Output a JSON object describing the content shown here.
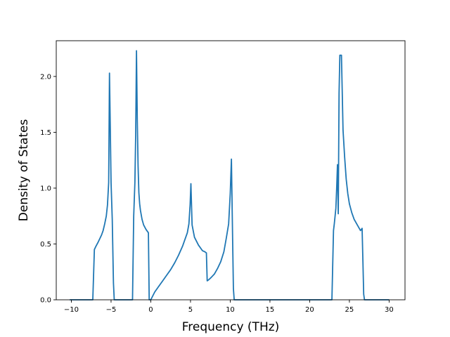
{
  "chart_data": {
    "type": "line",
    "title": "",
    "xlabel": "Frequency (THz)",
    "ylabel": "Density of States",
    "xlim": [
      -11.9,
      32.0
    ],
    "ylim": [
      0.0,
      2.32
    ],
    "xticks": [
      -10,
      -5,
      0,
      5,
      10,
      15,
      20,
      25,
      30
    ],
    "xtick_labels": [
      "−10",
      "−5",
      "0",
      "5",
      "10",
      "15",
      "20",
      "25",
      "30"
    ],
    "yticks": [
      0.0,
      0.5,
      1.0,
      1.5,
      2.0
    ],
    "ytick_labels": [
      "0.0",
      "0.5",
      "1.0",
      "1.5",
      "2.0"
    ],
    "grid": false,
    "series": [
      {
        "name": "",
        "color": "#1f77b4",
        "x": [
          -10.2,
          -7.3,
          -7.1,
          -6.9,
          -6.6,
          -6.4,
          -6.2,
          -6.0,
          -5.8,
          -5.6,
          -5.45,
          -5.3,
          -5.2,
          -5.1,
          -5.0,
          -4.85,
          -4.7,
          -4.6,
          -4.5,
          -2.3,
          -2.15,
          -2.0,
          -1.9,
          -1.8,
          -1.7,
          -1.6,
          -1.5,
          -1.4,
          -1.3,
          -1.1,
          -0.9,
          -0.6,
          -0.3,
          -0.2,
          0.0,
          0.5,
          1.0,
          1.5,
          2.0,
          2.5,
          3.0,
          3.5,
          4.0,
          4.3,
          4.6,
          4.8,
          4.95,
          5.05,
          5.2,
          5.5,
          6.0,
          6.5,
          6.8,
          7.0,
          7.1,
          7.3,
          7.6,
          8.0,
          8.4,
          8.8,
          9.2,
          9.5,
          9.8,
          10.0,
          10.15,
          10.3,
          10.4,
          10.5,
          10.6,
          22.8,
          23.0,
          23.1,
          23.3,
          23.4,
          23.5,
          23.6,
          23.7,
          23.8,
          23.9,
          24.0,
          24.1,
          24.2,
          24.4,
          24.6,
          24.8,
          25.0,
          25.3,
          25.6,
          26.0,
          26.4,
          26.6,
          26.7,
          26.8,
          26.9,
          27.0,
          30.0
        ],
        "y": [
          0.0,
          0.0,
          0.45,
          0.48,
          0.52,
          0.55,
          0.58,
          0.62,
          0.68,
          0.75,
          0.85,
          1.05,
          2.03,
          1.55,
          1.05,
          0.72,
          0.15,
          0.0,
          0.0,
          0.0,
          0.75,
          1.05,
          1.48,
          2.23,
          1.62,
          1.2,
          0.96,
          0.86,
          0.8,
          0.72,
          0.67,
          0.63,
          0.6,
          0.0,
          0.0,
          0.07,
          0.12,
          0.17,
          0.22,
          0.27,
          0.33,
          0.4,
          0.48,
          0.54,
          0.6,
          0.68,
          0.85,
          1.04,
          0.67,
          0.56,
          0.49,
          0.44,
          0.43,
          0.42,
          0.17,
          0.18,
          0.2,
          0.23,
          0.28,
          0.34,
          0.43,
          0.55,
          0.68,
          0.95,
          1.26,
          0.55,
          0.1,
          0.0,
          0.0,
          0.0,
          0.62,
          0.68,
          0.82,
          1.0,
          1.21,
          0.77,
          1.85,
          2.19,
          2.19,
          2.19,
          1.86,
          1.52,
          1.28,
          1.08,
          0.95,
          0.86,
          0.78,
          0.72,
          0.67,
          0.62,
          0.64,
          0.35,
          0.05,
          0.0,
          0.0,
          0.0
        ]
      }
    ]
  }
}
